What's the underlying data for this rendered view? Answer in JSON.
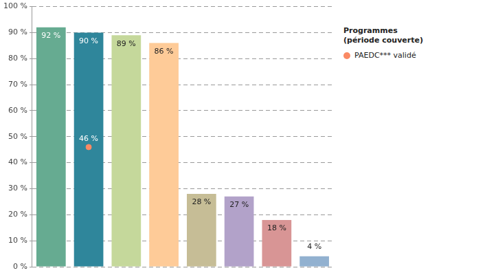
{
  "chart_data": {
    "type": "bar",
    "categories": [
      null,
      null,
      null,
      null,
      null,
      null,
      null,
      null
    ],
    "ylim": [
      0,
      100
    ],
    "yticks": [
      {
        "value": 0,
        "label": "0 %"
      },
      {
        "value": 10,
        "label": "10 %"
      },
      {
        "value": 20,
        "label": "20 %"
      },
      {
        "value": 30,
        "label": "30 %"
      },
      {
        "value": 40,
        "label": "40 %"
      },
      {
        "value": 50,
        "label": "50 %"
      },
      {
        "value": 60,
        "label": "60 %"
      },
      {
        "value": 70,
        "label": "70 %"
      },
      {
        "value": 80,
        "label": "80 %"
      },
      {
        "value": 90,
        "label": "90 %"
      },
      {
        "value": 100,
        "label": "100 %"
      }
    ],
    "grid": true,
    "data_labels": true,
    "legend": "right",
    "legend_title": [
      "Programmes",
      "(période couverte)"
    ],
    "series": [
      {
        "type": "bar",
        "colors": [
          "#66ab91",
          "#2f869b",
          "#c5d89b",
          "#fecb98",
          "#c6bd96",
          "#b2a2c9",
          "#d89595",
          "#92b1d0"
        ],
        "values": [
          92,
          90,
          89,
          86,
          28,
          27,
          18,
          4
        ],
        "value_labels": [
          "92 %",
          "90 %",
          "89 %",
          "86 %",
          "28 %",
          "27 %",
          "18 %",
          "4 %"
        ]
      },
      {
        "type": "scatter",
        "name": "PAEDC*** validé",
        "color": "#fa8a64",
        "marker": "circle",
        "values": [
          null,
          46,
          null,
          null,
          null,
          null,
          null,
          null
        ],
        "value_labels": [
          null,
          "46 %",
          null,
          null,
          null,
          null,
          null,
          null
        ]
      }
    ]
  }
}
